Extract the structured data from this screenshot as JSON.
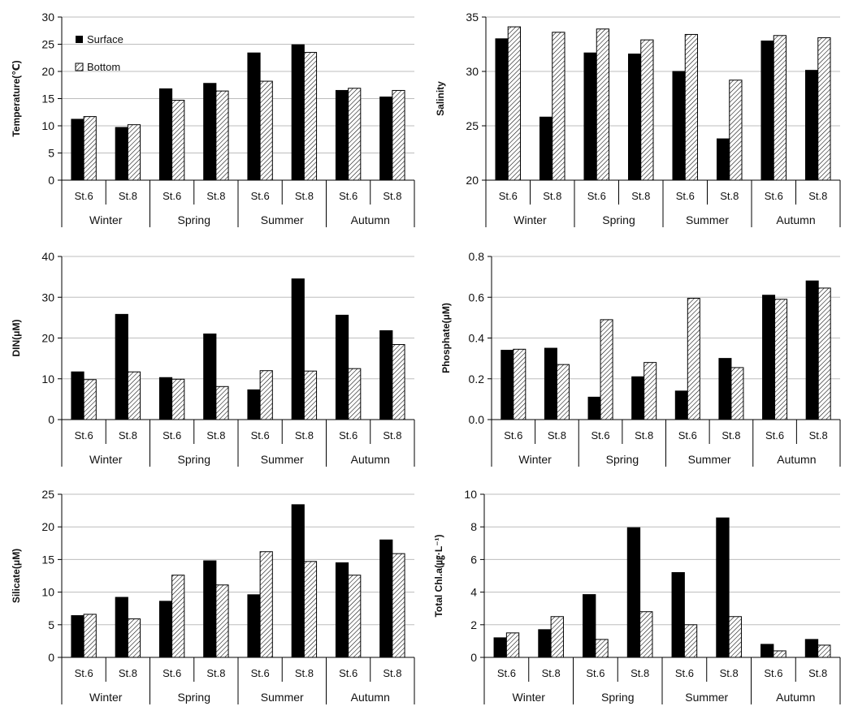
{
  "legend": {
    "surface": "Surface",
    "bottom": "Bottom"
  },
  "colors": {
    "surface": "#000000",
    "bottom": "#ffffff",
    "grid": "#bdbdbd",
    "axis": "#000000"
  },
  "chart_data": [
    {
      "type": "bar",
      "ylabel": "Temperature(℃)",
      "ylim": [
        0,
        30
      ],
      "yticks": [
        0,
        5,
        10,
        15,
        20,
        25,
        30
      ],
      "tick_decimals": 0,
      "grid": true,
      "legend_position": "top-left",
      "stations": [
        "St.6",
        "St.8",
        "St.6",
        "St.8",
        "St.6",
        "St.8",
        "St.6",
        "St.8"
      ],
      "seasons": [
        "Winter",
        "Spring",
        "Summer",
        "Autumn"
      ],
      "series": [
        {
          "name": "Surface",
          "values": [
            11.2,
            9.7,
            16.8,
            17.8,
            23.4,
            24.9,
            16.5,
            15.3
          ]
        },
        {
          "name": "Bottom",
          "values": [
            11.7,
            10.2,
            14.7,
            16.4,
            18.2,
            23.5,
            16.9,
            16.5
          ]
        }
      ]
    },
    {
      "type": "bar",
      "ylabel": "Salinity",
      "ylim": [
        20,
        35
      ],
      "yticks": [
        20,
        25,
        30,
        35
      ],
      "tick_decimals": 0,
      "grid": true,
      "stations": [
        "St.6",
        "St.8",
        "St.6",
        "St.8",
        "St.6",
        "St.8",
        "St.6",
        "St.8"
      ],
      "seasons": [
        "Winter",
        "Spring",
        "Summer",
        "Autumn"
      ],
      "series": [
        {
          "name": "Surface",
          "values": [
            33.0,
            25.8,
            31.7,
            31.6,
            30.0,
            23.8,
            32.8,
            30.1
          ]
        },
        {
          "name": "Bottom",
          "values": [
            34.1,
            33.6,
            33.9,
            32.9,
            33.4,
            29.2,
            33.3,
            33.1
          ]
        }
      ]
    },
    {
      "type": "bar",
      "ylabel": "DIN(μM)",
      "ylim": [
        0,
        40
      ],
      "yticks": [
        0,
        10,
        20,
        30,
        40
      ],
      "tick_decimals": 0,
      "grid": true,
      "stations": [
        "St.6",
        "St.8",
        "St.6",
        "St.8",
        "St.6",
        "St.8",
        "St.6",
        "St.8"
      ],
      "seasons": [
        "Winter",
        "Spring",
        "Summer",
        "Autumn"
      ],
      "series": [
        {
          "name": "Surface",
          "values": [
            11.7,
            25.8,
            10.3,
            21.0,
            7.3,
            34.5,
            25.6,
            21.8
          ]
        },
        {
          "name": "Bottom",
          "values": [
            9.8,
            11.7,
            9.9,
            8.1,
            12.0,
            11.9,
            12.5,
            18.4
          ]
        }
      ]
    },
    {
      "type": "bar",
      "ylabel": "Phosphate(μM)",
      "ylim": [
        0,
        0.8
      ],
      "yticks": [
        0,
        0.2,
        0.4,
        0.6,
        0.8
      ],
      "tick_decimals": 1,
      "grid": true,
      "stations": [
        "St.6",
        "St.8",
        "St.6",
        "St.8",
        "St.6",
        "St.8",
        "St.6",
        "St.8"
      ],
      "seasons": [
        "Winter",
        "Spring",
        "Summer",
        "Autumn"
      ],
      "series": [
        {
          "name": "Surface",
          "values": [
            0.34,
            0.35,
            0.11,
            0.21,
            0.14,
            0.3,
            0.61,
            0.68
          ]
        },
        {
          "name": "Bottom",
          "values": [
            0.345,
            0.27,
            0.49,
            0.28,
            0.595,
            0.255,
            0.59,
            0.645
          ]
        }
      ]
    },
    {
      "type": "bar",
      "ylabel": "Silicate(μM)",
      "ylim": [
        0,
        25
      ],
      "yticks": [
        0,
        5,
        10,
        15,
        20,
        25
      ],
      "tick_decimals": 0,
      "grid": true,
      "stations": [
        "St.6",
        "St.8",
        "St.6",
        "St.8",
        "St.6",
        "St.8",
        "St.6",
        "St.8"
      ],
      "seasons": [
        "Winter",
        "Spring",
        "Summer",
        "Autumn"
      ],
      "series": [
        {
          "name": "Surface",
          "values": [
            6.4,
            9.2,
            8.6,
            14.8,
            9.6,
            23.4,
            14.5,
            18.0
          ]
        },
        {
          "name": "Bottom",
          "values": [
            6.6,
            5.9,
            12.6,
            11.1,
            16.2,
            14.7,
            12.6,
            15.9
          ]
        }
      ]
    },
    {
      "type": "bar",
      "ylabel": "Total Chl.a(㎍·L⁻¹)",
      "ylim": [
        0,
        10
      ],
      "yticks": [
        0,
        2,
        4,
        6,
        8,
        10
      ],
      "tick_decimals": 0,
      "grid": true,
      "stations": [
        "St.6",
        "St.8",
        "St.6",
        "St.8",
        "St.6",
        "St.8",
        "St.6",
        "St.8"
      ],
      "seasons": [
        "Winter",
        "Spring",
        "Summer",
        "Autumn"
      ],
      "series": [
        {
          "name": "Surface",
          "values": [
            1.2,
            1.7,
            3.85,
            7.95,
            5.2,
            8.55,
            0.8,
            1.1
          ]
        },
        {
          "name": "Bottom",
          "values": [
            1.5,
            2.5,
            1.1,
            2.8,
            2.0,
            2.5,
            0.4,
            0.75
          ]
        }
      ]
    }
  ]
}
